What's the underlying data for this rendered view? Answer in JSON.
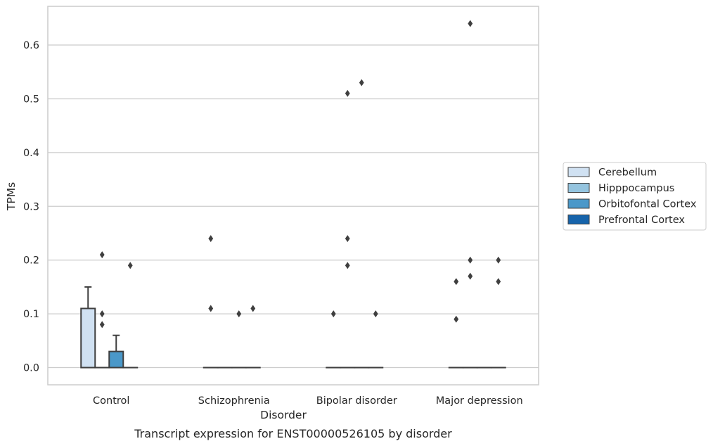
{
  "chart_data": {
    "type": "box",
    "title": "",
    "caption": "Transcript expression for ENST00000526105 by disorder",
    "xlabel": "Disorder",
    "ylabel": "TPMs",
    "ylim": [
      -0.032,
      0.672
    ],
    "yticks": [
      0.0,
      0.1,
      0.2,
      0.3,
      0.4,
      0.5,
      0.6
    ],
    "ytick_labels": [
      "0.0",
      "0.1",
      "0.2",
      "0.3",
      "0.4",
      "0.5",
      "0.6"
    ],
    "grid": "horizontal",
    "legend_position": "right",
    "categories": [
      "Control",
      "Schizophrenia",
      "Bipolar disorder",
      "Major depression"
    ],
    "series": [
      {
        "name": "Cerebellum",
        "color": "#d0e1f2",
        "boxes": [
          {
            "q1": 0.0,
            "median": 0.0,
            "q3": 0.11,
            "whisker_low": 0.0,
            "whisker_high": 0.15,
            "outliers": []
          },
          {
            "q1": 0.0,
            "median": 0.0,
            "q3": 0.0,
            "whisker_low": 0.0,
            "whisker_high": 0.0,
            "outliers": [
              0.24,
              0.11
            ]
          },
          {
            "q1": 0.0,
            "median": 0.0,
            "q3": 0.0,
            "whisker_low": 0.0,
            "whisker_high": 0.0,
            "outliers": [
              0.1
            ]
          },
          {
            "q1": 0.0,
            "median": 0.0,
            "q3": 0.0,
            "whisker_low": 0.0,
            "whisker_high": 0.0,
            "outliers": [
              0.16,
              0.09
            ]
          }
        ]
      },
      {
        "name": "Hipppocampus",
        "color": "#94c4df",
        "boxes": [
          {
            "q1": 0.0,
            "median": 0.0,
            "q3": 0.0,
            "whisker_low": 0.0,
            "whisker_high": 0.0,
            "outliers": [
              0.21,
              0.1,
              0.08
            ]
          },
          {
            "q1": 0.0,
            "median": 0.0,
            "q3": 0.0,
            "whisker_low": 0.0,
            "whisker_high": 0.0,
            "outliers": []
          },
          {
            "q1": 0.0,
            "median": 0.0,
            "q3": 0.0,
            "whisker_low": 0.0,
            "whisker_high": 0.0,
            "outliers": [
              0.51,
              0.24,
              0.19
            ]
          },
          {
            "q1": 0.0,
            "median": 0.0,
            "q3": 0.0,
            "whisker_low": 0.0,
            "whisker_high": 0.0,
            "outliers": [
              0.64,
              0.2,
              0.17
            ]
          }
        ]
      },
      {
        "name": "Orbitofontal Cortex",
        "color": "#4a98c9",
        "boxes": [
          {
            "q1": 0.0,
            "median": 0.0,
            "q3": 0.03,
            "whisker_low": 0.0,
            "whisker_high": 0.06,
            "outliers": []
          },
          {
            "q1": 0.0,
            "median": 0.0,
            "q3": 0.0,
            "whisker_low": 0.0,
            "whisker_high": 0.0,
            "outliers": [
              0.1
            ]
          },
          {
            "q1": 0.0,
            "median": 0.0,
            "q3": 0.0,
            "whisker_low": 0.0,
            "whisker_high": 0.0,
            "outliers": [
              0.53
            ]
          },
          {
            "q1": 0.0,
            "median": 0.0,
            "q3": 0.0,
            "whisker_low": 0.0,
            "whisker_high": 0.0,
            "outliers": []
          }
        ]
      },
      {
        "name": "Prefrontal Cortex",
        "color": "#1764ab",
        "boxes": [
          {
            "q1": 0.0,
            "median": 0.0,
            "q3": 0.0,
            "whisker_low": 0.0,
            "whisker_high": 0.0,
            "outliers": [
              0.19
            ]
          },
          {
            "q1": 0.0,
            "median": 0.0,
            "q3": 0.0,
            "whisker_low": 0.0,
            "whisker_high": 0.0,
            "outliers": [
              0.11
            ]
          },
          {
            "q1": 0.0,
            "median": 0.0,
            "q3": 0.0,
            "whisker_low": 0.0,
            "whisker_high": 0.0,
            "outliers": [
              0.1
            ]
          },
          {
            "q1": 0.0,
            "median": 0.0,
            "q3": 0.0,
            "whisker_low": 0.0,
            "whisker_high": 0.0,
            "outliers": [
              0.2,
              0.16
            ]
          }
        ]
      }
    ]
  }
}
